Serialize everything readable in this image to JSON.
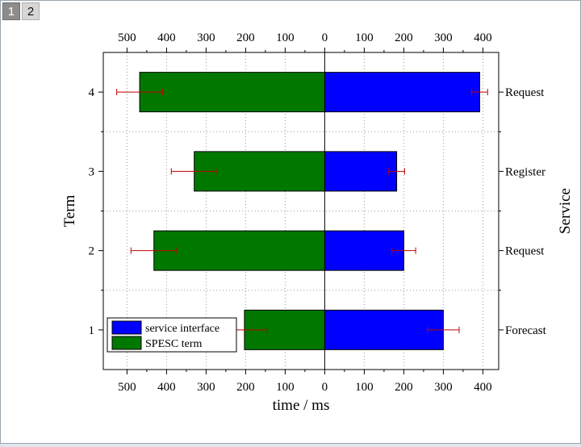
{
  "tabs": [
    {
      "label": "1",
      "active": true
    },
    {
      "label": "2",
      "active": false
    }
  ],
  "chart_data": {
    "type": "bar",
    "orientation": "horizontal-butterfly",
    "categories": [
      "1",
      "2",
      "3",
      "4"
    ],
    "category_labels_right": [
      "Forecast",
      "Request",
      "Register",
      "Request"
    ],
    "series": [
      {
        "name": "service interface",
        "color": "#0000ff",
        "side": "right",
        "values": [
          300,
          200,
          182,
          392
        ],
        "errors": [
          40,
          30,
          20,
          20
        ]
      },
      {
        "name": "SPESC term",
        "color": "#007800",
        "side": "left",
        "values": [
          203,
          432,
          330,
          468
        ],
        "errors": [
          58,
          58,
          58,
          58
        ]
      }
    ],
    "xlabel": "time / ms",
    "ylabel_left": "Term",
    "ylabel_right": "Service",
    "xlim": [
      -560,
      440
    ],
    "xticks": [
      -500,
      -400,
      -300,
      -200,
      -100,
      0,
      100,
      200,
      300,
      400
    ],
    "xtick_labels": [
      "500",
      "400",
      "300",
      "200",
      "100",
      "0",
      "100",
      "200",
      "300",
      "400"
    ],
    "grid": true,
    "legend_position": "bottom-left",
    "error_bar_color": "#c00000"
  }
}
